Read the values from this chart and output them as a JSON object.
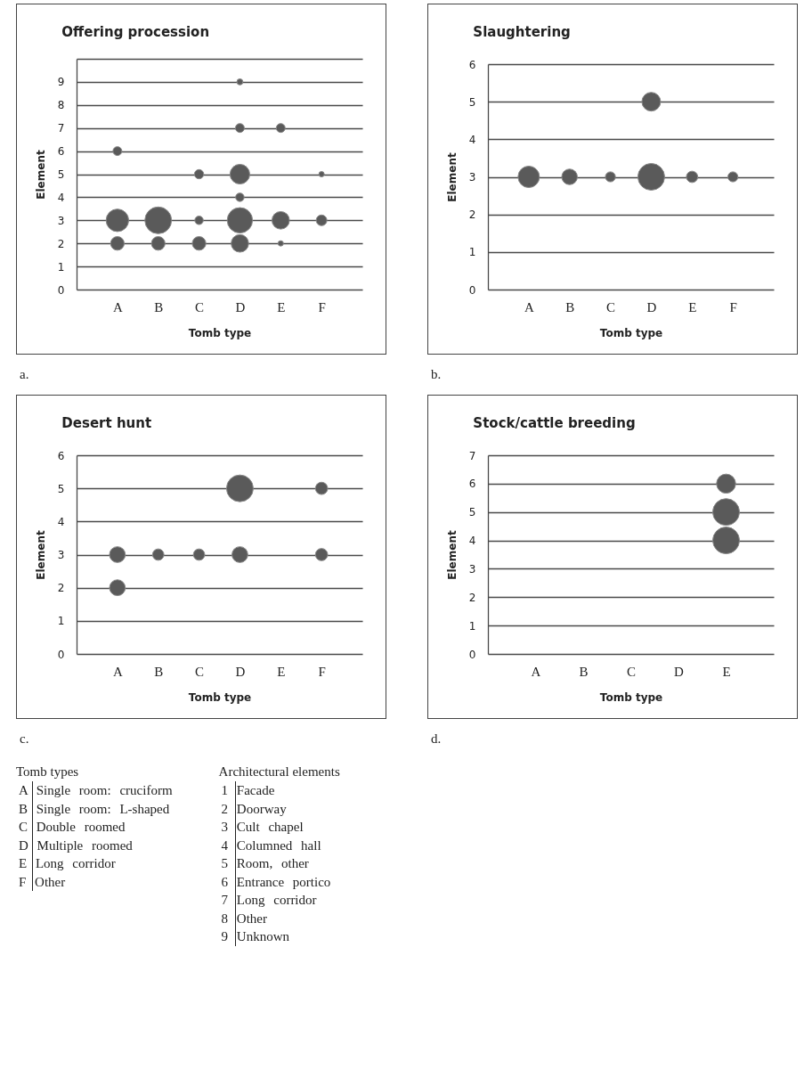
{
  "chart_data": [
    {
      "type": "bubble",
      "title": "Offering procession",
      "xlabel": "Tomb type",
      "ylabel": "Element",
      "categories": [
        "A",
        "B",
        "C",
        "D",
        "E",
        "F"
      ],
      "ylim": [
        0,
        10
      ],
      "yticks": [
        0,
        1,
        2,
        3,
        4,
        5,
        6,
        7,
        8,
        9,
        {
          "value": 10,
          "label": null
        }
      ],
      "grid": "y",
      "marker": "circle",
      "annotations": [
        "a."
      ],
      "series": [
        {
          "color": "#5a5a5a",
          "x": [
            "A",
            "A",
            "A",
            "B",
            "B",
            "C",
            "C",
            "C",
            "D",
            "D",
            "D",
            "D",
            "D",
            "D",
            "E",
            "E",
            "E",
            "F",
            "F"
          ],
          "values": [
            2,
            3,
            6,
            2,
            3,
            2,
            3,
            5,
            2,
            3,
            4,
            5,
            7,
            9,
            2,
            3,
            7,
            3,
            5
          ],
          "sizes": [
            0.26,
            0.71,
            0.11,
            0.26,
            1,
            0.26,
            0.1,
            0.12,
            0.43,
            0.9,
            0.1,
            0.54,
            0.11,
            0.05,
            0.04,
            0.43,
            0.11,
            0.16,
            0.04
          ]
        }
      ]
    },
    {
      "type": "bubble",
      "title": "Slaughtering",
      "xlabel": "Tomb type",
      "ylabel": "Element",
      "categories": [
        "A",
        "B",
        "C",
        "D",
        "E",
        "F"
      ],
      "ylim": [
        0,
        6
      ],
      "yticks": [
        0,
        1,
        2,
        3,
        4,
        5,
        6
      ],
      "grid": "y",
      "marker": "circle",
      "annotations": [
        "b."
      ],
      "series": [
        {
          "color": "#5a5a5a",
          "x": [
            "A",
            "B",
            "C",
            "D",
            "D",
            "E",
            "F"
          ],
          "values": [
            3,
            3,
            3,
            3,
            5,
            3,
            3
          ],
          "sizes": [
            0.64,
            0.34,
            0.14,
            1,
            0.49,
            0.18,
            0.14
          ]
        }
      ]
    },
    {
      "type": "bubble",
      "title": "Desert hunt",
      "xlabel": "Tomb type",
      "ylabel": "Element",
      "categories": [
        "A",
        "B",
        "C",
        "D",
        "E",
        "F"
      ],
      "ylim": [
        0,
        6
      ],
      "yticks": [
        0,
        1,
        2,
        3,
        4,
        5,
        6
      ],
      "grid": "y",
      "marker": "circle",
      "annotations": [
        "c."
      ],
      "series": [
        {
          "color": "#5a5a5a",
          "x": [
            "A",
            "A",
            "B",
            "C",
            "D",
            "D",
            "F",
            "F"
          ],
          "values": [
            2,
            3,
            3,
            3,
            3,
            5,
            3,
            5
          ],
          "sizes": [
            0.35,
            0.35,
            0.18,
            0.18,
            0.35,
            1,
            0.21,
            0.21
          ]
        }
      ]
    },
    {
      "type": "bubble",
      "title": "Stock/cattle breeding",
      "xlabel": "Tomb type",
      "ylabel": "Element",
      "categories": [
        "A",
        "B",
        "C",
        "D",
        "E"
      ],
      "ylim": [
        0,
        7
      ],
      "yticks": [
        0,
        1,
        2,
        3,
        4,
        5,
        6,
        7
      ],
      "grid": "y",
      "marker": "circle",
      "annotations": [
        "d."
      ],
      "series": [
        {
          "color": "#5a5a5a",
          "x": [
            "E",
            "E",
            "E"
          ],
          "values": [
            4,
            5,
            6
          ],
          "sizes": [
            1,
            1,
            0.51
          ]
        }
      ]
    },
    {
      "type": "other",
      "title": "Tomb types",
      "annotations": [
        "A Single room: cruciform",
        "B Single room: L-shaped",
        "C Double roomed",
        "D Multiple roomed",
        "E Long corridor",
        "F Other"
      ]
    },
    {
      "type": "other",
      "title": "Architectural elements",
      "annotations": [
        "1 Facade",
        "2 Doorway",
        "3 Cult chapel",
        "4 Columned hall",
        "5 Room, other",
        "6 Entrance portico",
        "7 Long corridor",
        "8 Other",
        "9 Unknown"
      ]
    }
  ]
}
